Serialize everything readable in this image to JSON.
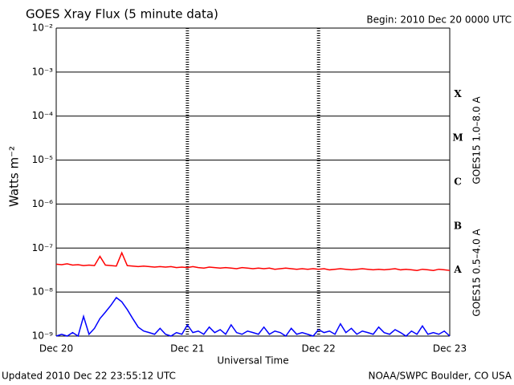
{
  "chart_data": {
    "type": "line",
    "title": "GOES Xray Flux (5 minute data)",
    "subtitle": "Begin:  2010 Dec 20 0000 UTC",
    "ylabel": "Watts m⁻²",
    "xlabel": "Universal Time",
    "footer_left": "Updated 2010 Dec 22 23:55:12 UTC",
    "footer_right": "NOAA/SWPC Boulder, CO USA",
    "class_labels": [
      "X",
      "M",
      "C",
      "B",
      "A"
    ],
    "log_y": true,
    "grid": true,
    "xlim": [
      0,
      72
    ],
    "xticks": [
      {
        "value": 0,
        "label": "Dec 20"
      },
      {
        "value": 24,
        "label": "Dec 21"
      },
      {
        "value": 48,
        "label": "Dec 22"
      },
      {
        "value": 72,
        "label": "Dec 23"
      }
    ],
    "ylim": [
      1e-09,
      0.01
    ],
    "yticks": [
      {
        "value": 1e-09,
        "label": "10⁻⁹"
      },
      {
        "value": 1e-08,
        "label": "10⁻⁸"
      },
      {
        "value": 1e-07,
        "label": "10⁻⁷"
      },
      {
        "value": 1e-06,
        "label": "10⁻⁶"
      },
      {
        "value": 1e-05,
        "label": "10⁻⁵"
      },
      {
        "value": 0.0001,
        "label": "10⁻⁴"
      },
      {
        "value": 0.001,
        "label": "10⁻³"
      },
      {
        "value": 0.01,
        "label": "10⁻²"
      }
    ],
    "x": [
      0,
      1,
      2,
      3,
      4,
      5,
      6,
      7,
      8,
      9,
      10,
      11,
      12,
      13,
      14,
      15,
      16,
      17,
      18,
      19,
      20,
      21,
      22,
      23,
      24,
      25,
      26,
      27,
      28,
      29,
      30,
      31,
      32,
      33,
      34,
      35,
      36,
      37,
      38,
      39,
      40,
      41,
      42,
      43,
      44,
      45,
      46,
      47,
      48,
      49,
      50,
      51,
      52,
      53,
      54,
      55,
      56,
      57,
      58,
      59,
      60,
      61,
      62,
      63,
      64,
      65,
      66,
      67,
      68,
      69,
      70,
      71,
      72
    ],
    "series": [
      {
        "name": "GOES15 1.0–8.0 A",
        "color": "#ff0000",
        "values": [
          4.3e-08,
          4.2e-08,
          4.4e-08,
          4.1e-08,
          4.2e-08,
          4e-08,
          4.1e-08,
          4e-08,
          6.5e-08,
          4.1e-08,
          4e-08,
          3.9e-08,
          7.8e-08,
          4e-08,
          3.9e-08,
          3.8e-08,
          3.9e-08,
          3.8e-08,
          3.7e-08,
          3.8e-08,
          3.7e-08,
          3.8e-08,
          3.6e-08,
          3.7e-08,
          3.6e-08,
          3.8e-08,
          3.6e-08,
          3.5e-08,
          3.7e-08,
          3.6e-08,
          3.5e-08,
          3.6e-08,
          3.5e-08,
          3.4e-08,
          3.6e-08,
          3.5e-08,
          3.4e-08,
          3.5e-08,
          3.4e-08,
          3.5e-08,
          3.3e-08,
          3.4e-08,
          3.5e-08,
          3.4e-08,
          3.3e-08,
          3.4e-08,
          3.3e-08,
          3.4e-08,
          3.3e-08,
          3.4e-08,
          3.2e-08,
          3.3e-08,
          3.4e-08,
          3.3e-08,
          3.2e-08,
          3.3e-08,
          3.4e-08,
          3.3e-08,
          3.2e-08,
          3.3e-08,
          3.2e-08,
          3.3e-08,
          3.4e-08,
          3.2e-08,
          3.3e-08,
          3.2e-08,
          3.1e-08,
          3.3e-08,
          3.2e-08,
          3.1e-08,
          3.3e-08,
          3.2e-08,
          3.1e-08
        ]
      },
      {
        "name": "GOES15 0.5–4.0 A",
        "color": "#0000ff",
        "values": [
          1e-09,
          1.1e-09,
          1e-09,
          1.2e-09,
          1e-09,
          2.8e-09,
          1.1e-09,
          1.5e-09,
          2.5e-09,
          3.5e-09,
          5e-09,
          7.5e-09,
          6e-09,
          4e-09,
          2.5e-09,
          1.6e-09,
          1.3e-09,
          1.2e-09,
          1.1e-09,
          1.5e-09,
          1.1e-09,
          1e-09,
          1.2e-09,
          1.1e-09,
          1.8e-09,
          1.2e-09,
          1.3e-09,
          1.1e-09,
          1.6e-09,
          1.2e-09,
          1.4e-09,
          1.1e-09,
          1.8e-09,
          1.2e-09,
          1.1e-09,
          1.3e-09,
          1.2e-09,
          1.1e-09,
          1.6e-09,
          1.1e-09,
          1.3e-09,
          1.2e-09,
          1e-09,
          1.5e-09,
          1.1e-09,
          1.2e-09,
          1.1e-09,
          1e-09,
          1.4e-09,
          1.2e-09,
          1.3e-09,
          1.1e-09,
          1.9e-09,
          1.2e-09,
          1.5e-09,
          1.1e-09,
          1.3e-09,
          1.2e-09,
          1.1e-09,
          1.6e-09,
          1.2e-09,
          1.1e-09,
          1.4e-09,
          1.2e-09,
          1e-09,
          1.3e-09,
          1.1e-09,
          1.7e-09,
          1.1e-09,
          1.2e-09,
          1.1e-09,
          1.3e-09,
          1e-09
        ]
      }
    ]
  }
}
